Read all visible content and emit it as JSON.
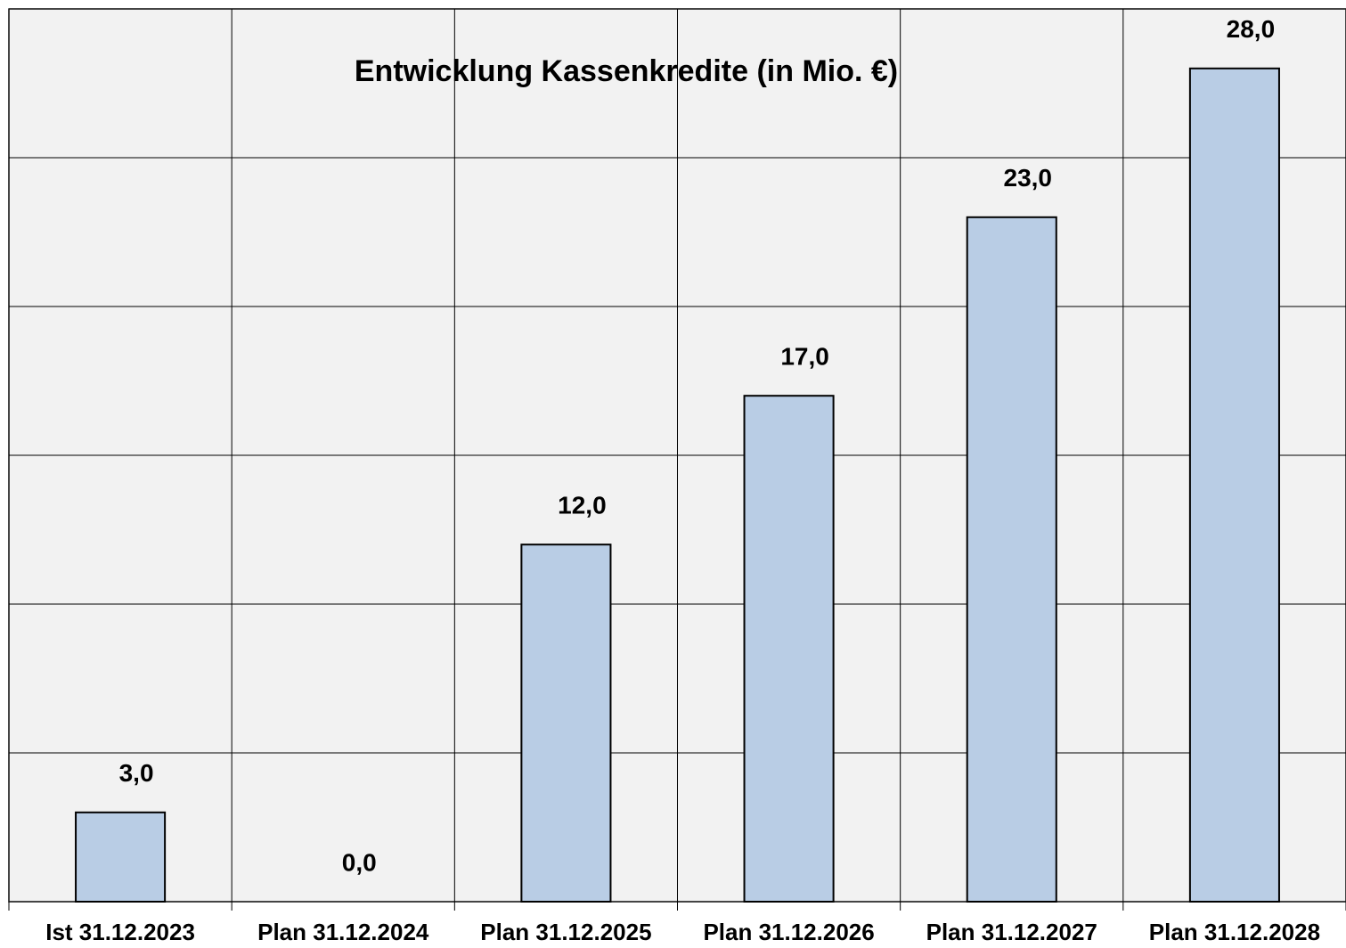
{
  "chart_data": {
    "type": "bar",
    "title": "Entwicklung Kassenkredite (in Mio. €)",
    "categories": [
      "Ist 31.12.2023",
      "Plan 31.12.2024",
      "Plan 31.12.2025",
      "Plan 31.12.2026",
      "Plan 31.12.2027",
      "Plan 31.12.2028"
    ],
    "values": [
      3,
      0,
      12,
      17,
      23,
      28
    ],
    "value_labels": [
      "3,0",
      "0,0",
      "12,0",
      "17,0",
      "23,0",
      "28,0"
    ],
    "color": "#b9cde5",
    "ylim": [
      0,
      30
    ],
    "yticks": [
      0,
      5,
      10,
      15,
      20,
      25,
      30
    ],
    "grid": true
  }
}
